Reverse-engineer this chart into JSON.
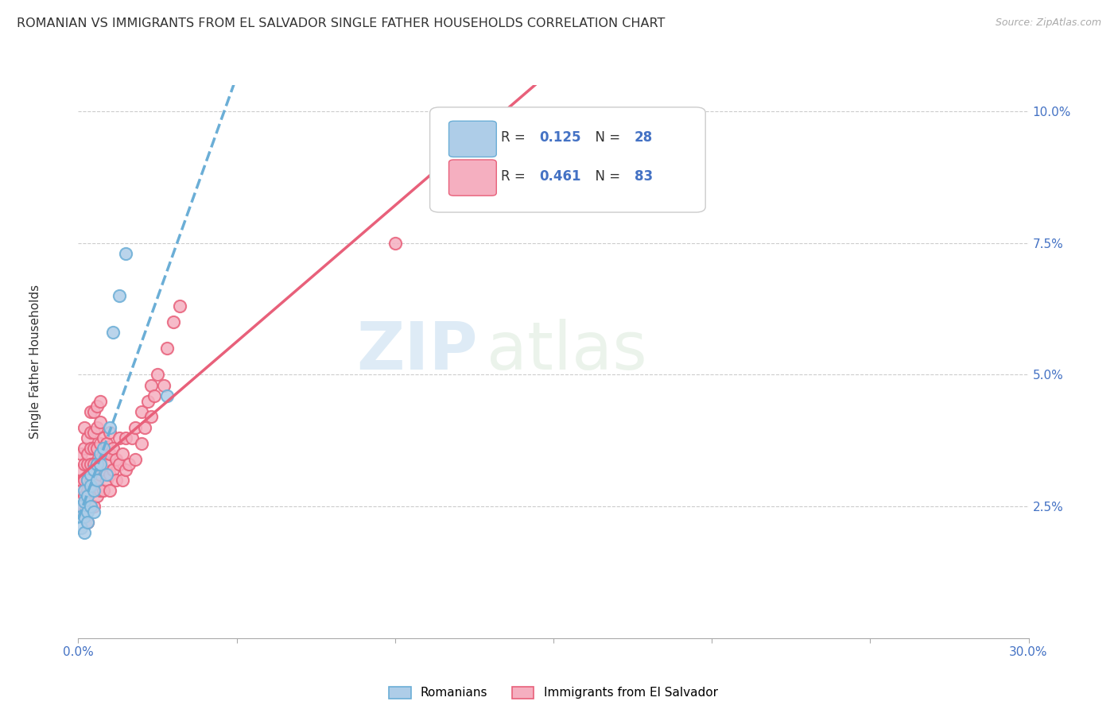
{
  "title": "ROMANIAN VS IMMIGRANTS FROM EL SALVADOR SINGLE FATHER HOUSEHOLDS CORRELATION CHART",
  "source": "Source: ZipAtlas.com",
  "ylabel": "Single Father Households",
  "xlabel_ticks": [
    "0.0%",
    "",
    "",
    "",
    "",
    "",
    "30.0%"
  ],
  "ylabel_ticks": [
    "2.5%",
    "5.0%",
    "7.5%",
    "10.0%"
  ],
  "xlim": [
    0.0,
    0.3
  ],
  "ylim": [
    0.0,
    0.105
  ],
  "r_romanian": 0.125,
  "n_romanian": 28,
  "r_salvador": 0.461,
  "n_salvador": 83,
  "blue_color": "#6baed6",
  "pink_color": "#e8607a",
  "blue_fill": "#aecde8",
  "pink_fill": "#f5afc0",
  "legend_blue_text": "Romanians",
  "legend_pink_text": "Immigrants from El Salvador",
  "watermark_zip": "ZIP",
  "watermark_atlas": "atlas",
  "romanian_x": [
    0.001,
    0.001,
    0.001,
    0.002,
    0.002,
    0.002,
    0.002,
    0.003,
    0.003,
    0.003,
    0.003,
    0.004,
    0.004,
    0.004,
    0.005,
    0.005,
    0.005,
    0.006,
    0.006,
    0.007,
    0.007,
    0.008,
    0.009,
    0.01,
    0.011,
    0.013,
    0.015,
    0.028
  ],
  "romanian_y": [
    0.025,
    0.023,
    0.021,
    0.028,
    0.026,
    0.023,
    0.02,
    0.03,
    0.027,
    0.024,
    0.022,
    0.031,
    0.029,
    0.025,
    0.032,
    0.028,
    0.024,
    0.033,
    0.03,
    0.035,
    0.033,
    0.036,
    0.031,
    0.04,
    0.058,
    0.065,
    0.073,
    0.046
  ],
  "salvador_x": [
    0.001,
    0.001,
    0.001,
    0.001,
    0.001,
    0.002,
    0.002,
    0.002,
    0.002,
    0.002,
    0.002,
    0.003,
    0.003,
    0.003,
    0.003,
    0.003,
    0.003,
    0.003,
    0.004,
    0.004,
    0.004,
    0.004,
    0.004,
    0.004,
    0.004,
    0.005,
    0.005,
    0.005,
    0.005,
    0.005,
    0.005,
    0.005,
    0.006,
    0.006,
    0.006,
    0.006,
    0.006,
    0.006,
    0.007,
    0.007,
    0.007,
    0.007,
    0.007,
    0.007,
    0.008,
    0.008,
    0.008,
    0.008,
    0.009,
    0.009,
    0.009,
    0.01,
    0.01,
    0.01,
    0.01,
    0.011,
    0.011,
    0.012,
    0.012,
    0.013,
    0.013,
    0.014,
    0.014,
    0.015,
    0.015,
    0.016,
    0.017,
    0.018,
    0.018,
    0.02,
    0.02,
    0.021,
    0.022,
    0.023,
    0.023,
    0.024,
    0.025,
    0.027,
    0.028,
    0.03,
    0.032,
    0.1,
    0.12
  ],
  "salvador_y": [
    0.025,
    0.028,
    0.03,
    0.032,
    0.035,
    0.024,
    0.027,
    0.03,
    0.033,
    0.036,
    0.04,
    0.022,
    0.025,
    0.028,
    0.03,
    0.033,
    0.035,
    0.038,
    0.025,
    0.028,
    0.03,
    0.033,
    0.036,
    0.039,
    0.043,
    0.025,
    0.028,
    0.03,
    0.033,
    0.036,
    0.039,
    0.043,
    0.027,
    0.03,
    0.033,
    0.036,
    0.04,
    0.044,
    0.028,
    0.031,
    0.034,
    0.037,
    0.041,
    0.045,
    0.028,
    0.032,
    0.035,
    0.038,
    0.03,
    0.033,
    0.037,
    0.028,
    0.031,
    0.035,
    0.039,
    0.032,
    0.036,
    0.03,
    0.034,
    0.033,
    0.038,
    0.03,
    0.035,
    0.032,
    0.038,
    0.033,
    0.038,
    0.034,
    0.04,
    0.037,
    0.043,
    0.04,
    0.045,
    0.042,
    0.048,
    0.046,
    0.05,
    0.048,
    0.055,
    0.06,
    0.063,
    0.075,
    0.09
  ]
}
